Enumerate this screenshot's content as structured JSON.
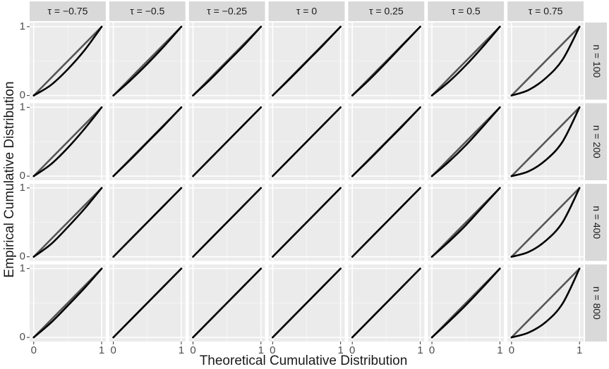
{
  "chart_data": {
    "type": "line",
    "x_label": "Theoretical Cumulative Distribution",
    "y_label": "Empirical Cumulative Distribution",
    "columns": [
      "τ = −0.75",
      "τ = −0.5",
      "τ = −0.25",
      "τ = 0",
      "τ = 0.25",
      "τ = 0.5",
      "τ = 0.75"
    ],
    "rows": [
      "n = 100",
      "n = 200",
      "n = 400",
      "n = 800"
    ],
    "xlim": [
      -0.06,
      1.06
    ],
    "ylim": [
      -0.06,
      1.06
    ],
    "xticks": [
      0,
      1
    ],
    "yticks": [
      0,
      1
    ],
    "grid": true,
    "reference_color": "#555555",
    "curve_color": "#000000",
    "x": [
      0,
      0.25,
      0.5,
      0.75,
      1
    ],
    "panels": [
      {
        "reference": [
          0,
          0.25,
          0.5,
          0.75,
          1
        ],
        "curve": [
          0,
          0.15,
          0.38,
          0.66,
          1
        ]
      },
      {
        "reference": [
          0,
          0.25,
          0.5,
          0.75,
          1
        ],
        "curve": [
          0,
          0.22,
          0.46,
          0.72,
          1
        ]
      },
      {
        "reference": [
          0,
          0.25,
          0.5,
          0.75,
          1
        ],
        "curve": [
          0,
          0.23,
          0.48,
          0.73,
          1
        ]
      },
      {
        "reference": [
          0,
          0.25,
          0.5,
          0.75,
          1
        ],
        "curve": [
          0,
          0.24,
          0.49,
          0.74,
          1
        ]
      },
      {
        "reference": [
          0,
          0.25,
          0.5,
          0.75,
          1
        ],
        "curve": [
          0,
          0.23,
          0.48,
          0.74,
          1
        ]
      },
      {
        "reference": [
          0,
          0.25,
          0.5,
          0.75,
          1
        ],
        "curve": [
          0,
          0.2,
          0.44,
          0.71,
          1
        ]
      },
      {
        "reference": [
          0,
          0.25,
          0.5,
          0.75,
          1
        ],
        "curve": [
          0,
          0.08,
          0.25,
          0.52,
          1
        ]
      },
      {
        "reference": [
          0,
          0.25,
          0.5,
          0.75,
          1
        ],
        "curve": [
          0,
          0.17,
          0.41,
          0.69,
          1
        ]
      },
      {
        "reference": [
          0,
          0.25,
          0.5,
          0.75,
          1
        ],
        "curve": [
          0,
          0.24,
          0.49,
          0.74,
          1
        ]
      },
      {
        "reference": [
          0,
          0.25,
          0.5,
          0.75,
          1
        ],
        "curve": [
          0,
          0.25,
          0.5,
          0.75,
          1
        ]
      },
      {
        "reference": [
          0,
          0.25,
          0.5,
          0.75,
          1
        ],
        "curve": [
          0,
          0.25,
          0.5,
          0.75,
          1
        ]
      },
      {
        "reference": [
          0,
          0.25,
          0.5,
          0.75,
          1
        ],
        "curve": [
          0,
          0.24,
          0.49,
          0.74,
          1
        ]
      },
      {
        "reference": [
          0,
          0.25,
          0.5,
          0.75,
          1
        ],
        "curve": [
          0,
          0.21,
          0.45,
          0.72,
          1
        ]
      },
      {
        "reference": [
          0,
          0.25,
          0.5,
          0.75,
          1
        ],
        "curve": [
          0,
          0.07,
          0.23,
          0.5,
          1
        ]
      },
      {
        "reference": [
          0,
          0.25,
          0.5,
          0.75,
          1
        ],
        "curve": [
          0,
          0.18,
          0.43,
          0.7,
          1
        ]
      },
      {
        "reference": [
          0,
          0.25,
          0.5,
          0.75,
          1
        ],
        "curve": [
          0,
          0.25,
          0.5,
          0.75,
          1
        ]
      },
      {
        "reference": [
          0,
          0.25,
          0.5,
          0.75,
          1
        ],
        "curve": [
          0,
          0.25,
          0.5,
          0.75,
          1
        ]
      },
      {
        "reference": [
          0,
          0.25,
          0.5,
          0.75,
          1
        ],
        "curve": [
          0,
          0.25,
          0.5,
          0.75,
          1
        ]
      },
      {
        "reference": [
          0,
          0.25,
          0.5,
          0.75,
          1
        ],
        "curve": [
          0,
          0.25,
          0.5,
          0.75,
          1
        ]
      },
      {
        "reference": [
          0,
          0.25,
          0.5,
          0.75,
          1
        ],
        "curve": [
          0,
          0.22,
          0.46,
          0.73,
          1
        ]
      },
      {
        "reference": [
          0,
          0.25,
          0.5,
          0.75,
          1
        ],
        "curve": [
          0,
          0.07,
          0.23,
          0.5,
          1
        ]
      },
      {
        "reference": [
          0,
          0.25,
          0.5,
          0.75,
          1
        ],
        "curve": [
          0,
          0.21,
          0.46,
          0.72,
          1
        ]
      },
      {
        "reference": [
          0,
          0.25,
          0.5,
          0.75,
          1
        ],
        "curve": [
          0,
          0.25,
          0.5,
          0.75,
          1
        ]
      },
      {
        "reference": [
          0,
          0.25,
          0.5,
          0.75,
          1
        ],
        "curve": [
          0,
          0.25,
          0.5,
          0.75,
          1
        ]
      },
      {
        "reference": [
          0,
          0.25,
          0.5,
          0.75,
          1
        ],
        "curve": [
          0,
          0.25,
          0.5,
          0.75,
          1
        ]
      },
      {
        "reference": [
          0,
          0.25,
          0.5,
          0.75,
          1
        ],
        "curve": [
          0,
          0.25,
          0.5,
          0.75,
          1
        ]
      },
      {
        "reference": [
          0,
          0.25,
          0.5,
          0.75,
          1
        ],
        "curve": [
          0,
          0.23,
          0.47,
          0.73,
          1
        ]
      },
      {
        "reference": [
          0,
          0.25,
          0.5,
          0.75,
          1
        ],
        "curve": [
          0,
          0.07,
          0.22,
          0.49,
          1
        ]
      }
    ]
  }
}
